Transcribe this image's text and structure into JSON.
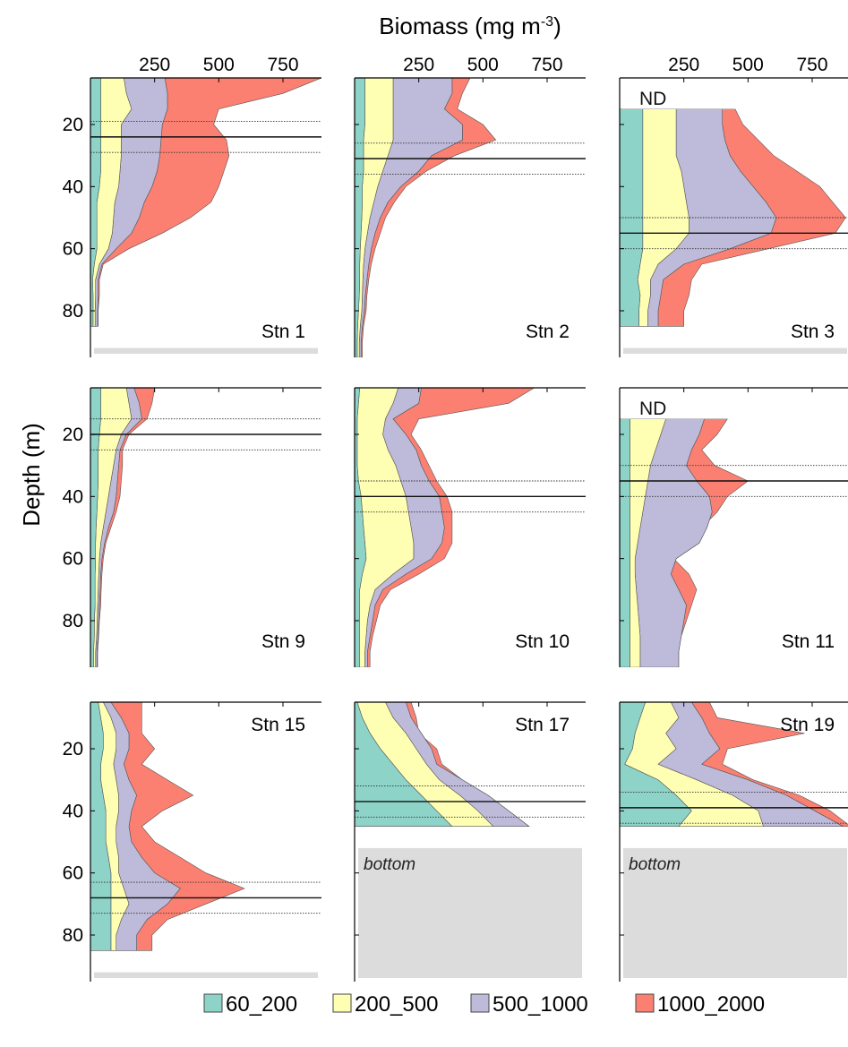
{
  "chart_data": {
    "type": "area",
    "title": "Biomass (mg m-3)",
    "title_main": "Biomass (mg m",
    "title_sup": "-3",
    "title_close": ")",
    "ylabel": "Depth (m)",
    "x_ticks": [
      "250",
      "500",
      "750"
    ],
    "x_tick_values": [
      250,
      500,
      750
    ],
    "xlim": [
      0,
      900
    ],
    "y_ticks": [
      "20",
      "40",
      "60",
      "80"
    ],
    "y_tick_values": [
      20,
      40,
      60,
      80
    ],
    "ylim_top": 5,
    "y_axis_inverted": true,
    "size_classes": [
      {
        "name": "60_200",
        "color": "#8dd3c7"
      },
      {
        "name": "200_500",
        "color": "#ffffb3"
      },
      {
        "name": "500_1000",
        "color": "#bebada"
      },
      {
        "name": "1000_2000",
        "color": "#fb8072"
      }
    ],
    "bottom_label": "bottom",
    "nd_label": "ND",
    "stations": [
      {
        "label": "Stn 1",
        "ylim": [
          5,
          95
        ],
        "bottom_depth": 92,
        "nd_above": null,
        "lines": {
          "solid": 24,
          "dotted": [
            19,
            29
          ]
        },
        "label_position": "bottom-right",
        "depths": [
          5,
          10,
          15,
          20,
          25,
          30,
          35,
          40,
          45,
          50,
          55,
          60,
          65,
          70,
          75,
          80,
          85
        ],
        "cumulative": [
          [
            40,
            40,
            40,
            40,
            40,
            40,
            40,
            35,
            25,
            25,
            25,
            25,
            15,
            8,
            10,
            10,
            10
          ],
          [
            130,
            140,
            160,
            120,
            120,
            120,
            115,
            110,
            95,
            90,
            85,
            70,
            35,
            20,
            20,
            18,
            18
          ],
          [
            290,
            300,
            300,
            280,
            275,
            270,
            260,
            240,
            210,
            190,
            160,
            100,
            45,
            30,
            30,
            28,
            28
          ],
          [
            900,
            750,
            500,
            480,
            530,
            540,
            520,
            500,
            470,
            390,
            280,
            150,
            50,
            35,
            35,
            30,
            30
          ]
        ]
      },
      {
        "label": "Stn 2",
        "ylim": [
          5,
          95
        ],
        "bottom_depth": null,
        "nd_above": null,
        "lines": {
          "solid": 31,
          "dotted": [
            26,
            36
          ]
        },
        "label_position": "bottom-right",
        "depths": [
          5,
          10,
          15,
          20,
          25,
          30,
          35,
          40,
          45,
          50,
          55,
          60,
          65,
          70,
          75,
          80,
          85,
          90,
          95
        ],
        "cumulative": [
          [
            40,
            40,
            40,
            40,
            35,
            35,
            35,
            30,
            30,
            28,
            25,
            22,
            20,
            20,
            18,
            15,
            12,
            10,
            10
          ],
          [
            150,
            150,
            150,
            150,
            150,
            130,
            110,
            90,
            75,
            60,
            50,
            40,
            35,
            32,
            30,
            28,
            22,
            18,
            18
          ],
          [
            380,
            380,
            350,
            420,
            420,
            300,
            250,
            180,
            130,
            100,
            80,
            65,
            55,
            48,
            42,
            38,
            30,
            25,
            25
          ],
          [
            450,
            420,
            400,
            500,
            550,
            390,
            280,
            200,
            155,
            120,
            100,
            80,
            65,
            55,
            48,
            45,
            35,
            30,
            30
          ]
        ]
      },
      {
        "label": "Stn 3",
        "ylim": [
          5,
          95
        ],
        "bottom_depth": 92,
        "nd_above": 15,
        "lines": {
          "solid": 55,
          "dotted": [
            50,
            60
          ]
        },
        "label_position": "bottom-right",
        "depths": [
          15,
          20,
          25,
          30,
          35,
          40,
          45,
          50,
          55,
          60,
          65,
          70,
          75,
          80,
          85
        ],
        "cumulative": [
          [
            90,
            90,
            90,
            90,
            90,
            90,
            90,
            90,
            90,
            90,
            80,
            70,
            80,
            75,
            75
          ],
          [
            220,
            220,
            220,
            220,
            240,
            250,
            260,
            270,
            270,
            220,
            150,
            120,
            120,
            110,
            110
          ],
          [
            400,
            400,
            410,
            430,
            470,
            520,
            570,
            610,
            590,
            430,
            250,
            170,
            160,
            150,
            150
          ],
          [
            450,
            480,
            540,
            600,
            690,
            780,
            830,
            880,
            840,
            580,
            320,
            280,
            270,
            250,
            250
          ]
        ]
      },
      {
        "label": "Stn 9",
        "ylim": [
          5,
          95
        ],
        "bottom_depth": null,
        "nd_above": null,
        "lines": {
          "solid": 20,
          "dotted": [
            15,
            25
          ]
        },
        "label_position": "bottom-right",
        "depths": [
          5,
          10,
          15,
          20,
          25,
          30,
          35,
          40,
          45,
          50,
          55,
          60,
          65,
          70,
          75,
          80,
          85,
          90,
          95
        ],
        "cumulative": [
          [
            40,
            40,
            40,
            35,
            30,
            30,
            30,
            28,
            25,
            22,
            20,
            20,
            18,
            18,
            18,
            15,
            15,
            12,
            12
          ],
          [
            140,
            150,
            160,
            120,
            100,
            90,
            80,
            70,
            60,
            50,
            40,
            35,
            32,
            30,
            28,
            26,
            24,
            20,
            20
          ],
          [
            170,
            190,
            200,
            140,
            115,
            110,
            105,
            100,
            90,
            70,
            55,
            45,
            40,
            38,
            35,
            32,
            30,
            25,
            25
          ],
          [
            250,
            240,
            220,
            150,
            125,
            125,
            120,
            115,
            100,
            80,
            60,
            50,
            45,
            42,
            40,
            35,
            32,
            28,
            28
          ]
        ]
      },
      {
        "label": "Stn 10",
        "ylim": [
          5,
          95
        ],
        "bottom_depth": null,
        "nd_above": null,
        "lines": {
          "solid": 40,
          "dotted": [
            35,
            45
          ]
        },
        "label_position": "bottom-right",
        "depths": [
          5,
          10,
          15,
          20,
          25,
          30,
          35,
          40,
          45,
          50,
          55,
          60,
          65,
          70,
          75,
          80,
          85,
          90,
          95
        ],
        "cumulative": [
          [
            20,
            15,
            10,
            10,
            10,
            10,
            15,
            25,
            30,
            35,
            40,
            45,
            30,
            20,
            20,
            20,
            20,
            20,
            20
          ],
          [
            170,
            150,
            120,
            110,
            130,
            160,
            180,
            200,
            210,
            220,
            230,
            230,
            150,
            80,
            60,
            50,
            45,
            40,
            40
          ],
          [
            260,
            250,
            150,
            200,
            240,
            260,
            290,
            330,
            340,
            350,
            340,
            300,
            200,
            110,
            80,
            70,
            60,
            50,
            50
          ],
          [
            700,
            600,
            250,
            220,
            260,
            290,
            320,
            360,
            380,
            380,
            380,
            350,
            250,
            140,
            100,
            85,
            70,
            60,
            60
          ]
        ]
      },
      {
        "label": "Stn 11",
        "ylim": [
          5,
          95
        ],
        "bottom_depth": null,
        "nd_above": 15,
        "lines": {
          "solid": 35,
          "dotted": [
            30,
            40
          ]
        },
        "label_position": "bottom-right",
        "depths": [
          15,
          20,
          25,
          30,
          35,
          40,
          45,
          50,
          55,
          60,
          65,
          70,
          75,
          80,
          85,
          90,
          95
        ],
        "cumulative": [
          [
            40,
            40,
            40,
            40,
            40,
            40,
            40,
            40,
            40,
            40,
            40,
            40,
            40,
            40,
            40,
            40,
            40
          ],
          [
            180,
            160,
            140,
            120,
            110,
            100,
            90,
            80,
            70,
            60,
            60,
            65,
            70,
            75,
            80,
            80,
            80
          ],
          [
            330,
            310,
            280,
            260,
            300,
            350,
            360,
            340,
            310,
            220,
            200,
            230,
            260,
            250,
            240,
            230,
            230
          ],
          [
            420,
            380,
            320,
            370,
            500,
            420,
            380,
            320,
            250,
            210,
            270,
            300,
            280,
            260,
            240,
            230,
            230
          ]
        ]
      },
      {
        "label": "Stn 15",
        "ylim": [
          5,
          95
        ],
        "bottom_depth": 92,
        "nd_above": null,
        "lines": {
          "solid": 68,
          "dotted": [
            63,
            73
          ]
        },
        "label_position": "top-right",
        "depths": [
          5,
          10,
          15,
          20,
          25,
          30,
          35,
          40,
          45,
          50,
          55,
          60,
          65,
          70,
          75,
          80,
          85
        ],
        "cumulative": [
          [
            30,
            40,
            50,
            50,
            40,
            40,
            50,
            60,
            60,
            60,
            70,
            80,
            80,
            80,
            80,
            80,
            80
          ],
          [
            50,
            80,
            100,
            100,
            90,
            100,
            110,
            110,
            100,
            100,
            110,
            110,
            130,
            150,
            120,
            100,
            100
          ],
          [
            80,
            120,
            150,
            150,
            130,
            150,
            180,
            160,
            150,
            160,
            200,
            250,
            350,
            300,
            220,
            180,
            180
          ],
          [
            200,
            200,
            200,
            250,
            200,
            300,
            400,
            280,
            200,
            250,
            350,
            450,
            600,
            450,
            300,
            240,
            240
          ]
        ]
      },
      {
        "label": "Stn 17",
        "ylim": [
          5,
          95
        ],
        "bottom_depth": 52,
        "nd_above": null,
        "lines": {
          "solid": 37,
          "dotted": [
            32,
            42
          ]
        },
        "label_position": "top-right",
        "depths": [
          5,
          10,
          15,
          20,
          25,
          30,
          35,
          40,
          45
        ],
        "cumulative": [
          [
            10,
            30,
            60,
            100,
            150,
            200,
            260,
            320,
            380
          ],
          [
            120,
            150,
            200,
            240,
            280,
            330,
            410,
            480,
            540
          ],
          [
            200,
            220,
            260,
            300,
            320,
            420,
            520,
            600,
            680
          ],
          [
            220,
            240,
            250,
            320,
            340,
            420,
            520,
            600,
            680
          ]
        ]
      },
      {
        "label": "Stn 19",
        "ylim": [
          5,
          95
        ],
        "bottom_depth": 52,
        "nd_above": null,
        "lines": {
          "solid": 39,
          "dotted": [
            34,
            44
          ]
        },
        "label_position": "top-right",
        "depths": [
          5,
          10,
          15,
          20,
          25,
          30,
          35,
          40,
          45
        ],
        "cumulative": [
          [
            100,
            80,
            60,
            50,
            20,
            150,
            220,
            280,
            230
          ],
          [
            200,
            230,
            180,
            220,
            150,
            300,
            440,
            540,
            560
          ],
          [
            280,
            320,
            350,
            390,
            320,
            500,
            650,
            760,
            870
          ],
          [
            350,
            380,
            720,
            420,
            400,
            520,
            700,
            820,
            900
          ]
        ]
      }
    ]
  }
}
